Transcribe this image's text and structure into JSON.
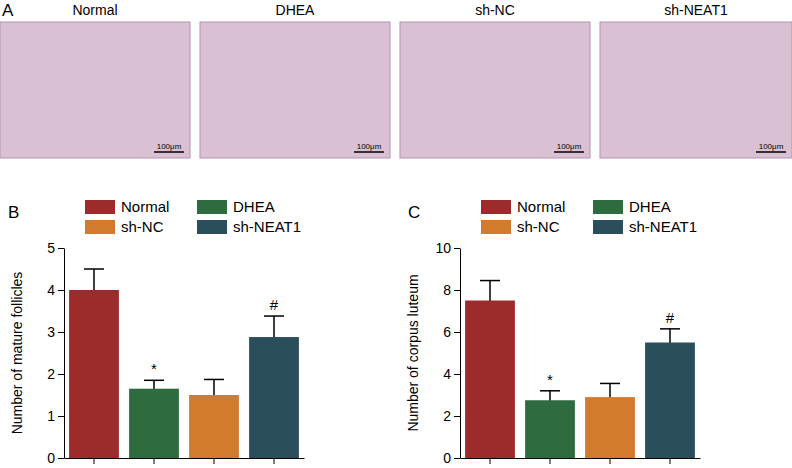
{
  "panel_a": {
    "label": "A",
    "images": [
      {
        "title": "Normal",
        "scale_bar": "100μm"
      },
      {
        "title": "DHEA",
        "scale_bar": "100μm"
      },
      {
        "title": "sh-NC",
        "scale_bar": "100μm"
      },
      {
        "title": "sh-NEAT1",
        "scale_bar": "100μm"
      }
    ]
  },
  "chart_data": [
    {
      "type": "bar",
      "panel_label": "B",
      "y_label": "Number of mature follicles",
      "categories": [
        "Normal",
        "DHEA",
        "sh-NC",
        "sh-NEAT1"
      ],
      "values": [
        4.0,
        1.65,
        1.5,
        2.88
      ],
      "errors": [
        0.5,
        0.2,
        0.37,
        0.5
      ],
      "colors": [
        "#9e2b2c",
        "#2e6b3e",
        "#d27b2f",
        "#2b4e5d"
      ],
      "ylim": [
        0,
        5
      ],
      "yticks": [
        0,
        1,
        2,
        3,
        4,
        5
      ],
      "tick_labels": "y",
      "legend": "top",
      "annotations": [
        {
          "category": "DHEA",
          "text": "*"
        },
        {
          "category": "sh-NEAT1",
          "text": "#"
        }
      ]
    },
    {
      "type": "bar",
      "panel_label": "C",
      "y_label": "Number of corpus luteum",
      "categories": [
        "Normal",
        "DHEA",
        "sh-NC",
        "sh-NEAT1"
      ],
      "values": [
        7.5,
        2.75,
        2.9,
        5.5
      ],
      "errors": [
        0.95,
        0.45,
        0.65,
        0.65
      ],
      "colors": [
        "#9e2b2c",
        "#2e6b3e",
        "#d27b2f",
        "#2b4e5d"
      ],
      "ylim": [
        0,
        10
      ],
      "yticks": [
        0,
        2,
        4,
        6,
        8,
        10
      ],
      "tick_labels": "y",
      "legend": "top",
      "annotations": [
        {
          "category": "DHEA",
          "text": "*"
        },
        {
          "category": "sh-NEAT1",
          "text": "#"
        }
      ]
    }
  ]
}
